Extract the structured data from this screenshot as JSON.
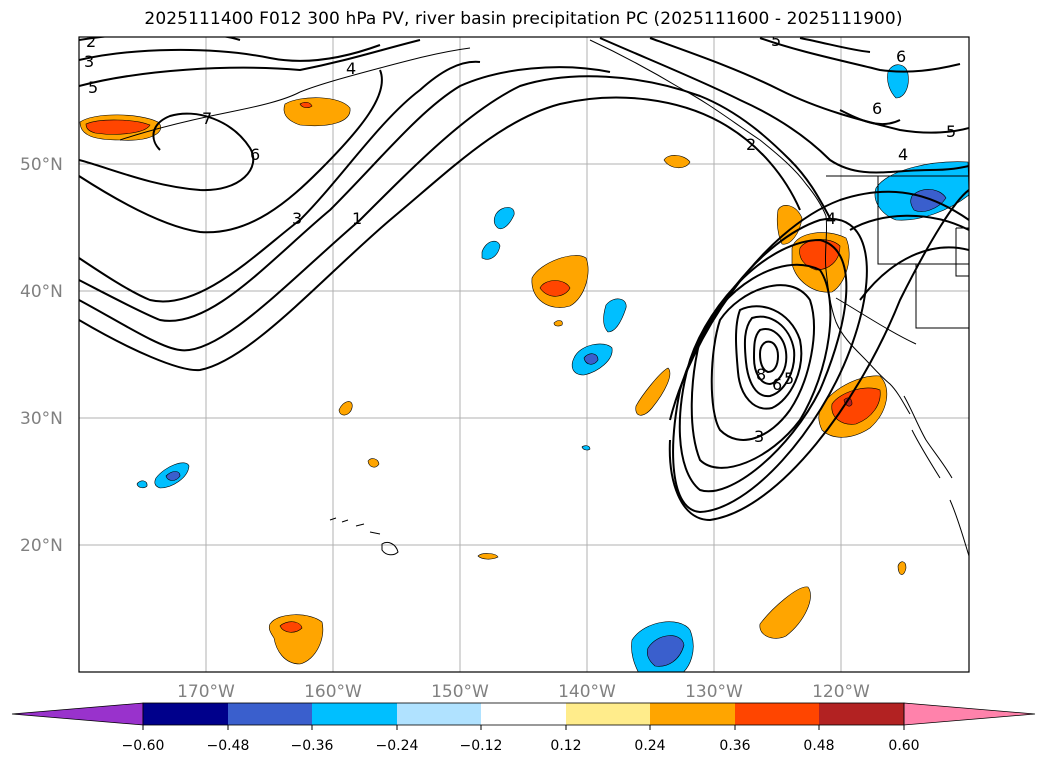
{
  "title": "2025111400 F012 300 hPa PV, river basin precipitation PC (2025111600 - 2025111900)",
  "map": {
    "lon_range": [
      -180,
      -110
    ],
    "lat_range": [
      10,
      60
    ],
    "lat_labels": [
      "20°N",
      "30°N",
      "40°N",
      "50°N"
    ],
    "lon_labels": [
      "170°W",
      "160°W",
      "150°W",
      "140°W",
      "130°W",
      "120°W"
    ]
  },
  "contour_labels": [
    "2",
    "3",
    "5",
    "4",
    "7",
    "6",
    "3",
    "1",
    "5",
    "6",
    "6",
    "5",
    "4",
    "4",
    "8",
    "6",
    "5",
    "3",
    "2"
  ],
  "colorbar": {
    "colors": [
      "#9932cc",
      "#00008b",
      "#3a5fcd",
      "#00bfff",
      "#b0e2ff",
      "#ffffff",
      "#ffec8b",
      "#ffa500",
      "#ff4500",
      "#b22222",
      "#ff82ab"
    ],
    "tick_labels": [
      "−0.60",
      "−0.48",
      "−0.36",
      "−0.24",
      "−0.12",
      "0.12",
      "0.24",
      "0.36",
      "0.48",
      "0.60"
    ]
  },
  "precip_colors": {
    "light_blue": "#00bfff",
    "mid_blue": "#3a5fcd",
    "orange": "#ffa500",
    "red_orange": "#ff4500",
    "dark_red": "#b22222"
  }
}
